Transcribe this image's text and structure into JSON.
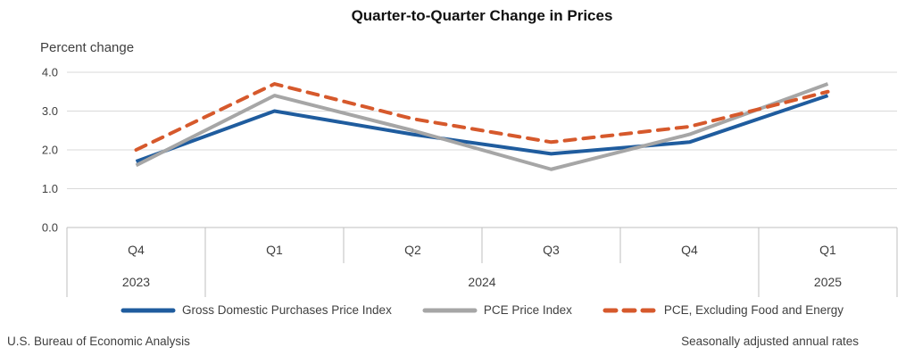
{
  "chart_data": {
    "type": "line",
    "title": "Quarter-to-Quarter Change in Prices",
    "ylabel": "Percent change",
    "xlabel": "",
    "categories": [
      "Q4",
      "Q1",
      "Q2",
      "Q3",
      "Q4",
      "Q1"
    ],
    "year_groups": [
      {
        "label": "2023",
        "span": 1
      },
      {
        "label": "2024",
        "span": 4
      },
      {
        "label": "2025",
        "span": 1
      }
    ],
    "ylim": [
      0.0,
      4.0
    ],
    "yticks": [
      0.0,
      1.0,
      2.0,
      3.0,
      4.0
    ],
    "ytick_labels": [
      "0.0",
      "1.0",
      "2.0",
      "3.0",
      "4.0"
    ],
    "grid": true,
    "legend_position": "bottom",
    "series": [
      {
        "name": "Gross Domestic Purchases Price Index",
        "color": "#1f5c9e",
        "dash": "solid",
        "values": [
          1.7,
          3.0,
          2.4,
          1.9,
          2.2,
          3.4
        ]
      },
      {
        "name": "PCE Price Index",
        "color": "#a6a6a6",
        "dash": "solid",
        "values": [
          1.6,
          3.4,
          2.5,
          1.5,
          2.4,
          3.7
        ]
      },
      {
        "name": "PCE, Excluding Food and Energy",
        "color": "#d6592c",
        "dash": "dashed",
        "values": [
          2.0,
          3.7,
          2.8,
          2.2,
          2.6,
          3.5
        ]
      }
    ],
    "colors": {
      "gridline": "#d9d9d9",
      "axis": "#bfbfbf",
      "text": "#3f3f3f"
    }
  },
  "footer": {
    "left": "U.S. Bureau of Economic Analysis",
    "right": "Seasonally adjusted annual rates"
  }
}
